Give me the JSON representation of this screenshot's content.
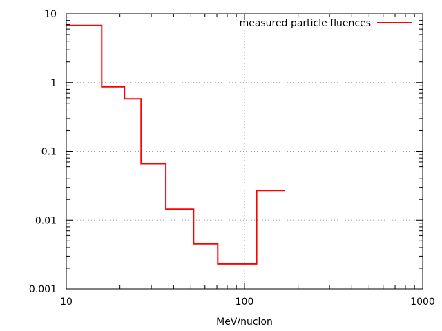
{
  "chart_data": {
    "type": "line",
    "title": "",
    "xlabel": "MeV/nuclon",
    "ylabel": "",
    "xscale": "log",
    "yscale": "log",
    "xlim": [
      10,
      1000
    ],
    "ylim": [
      0.001,
      10
    ],
    "grid": true,
    "legend_position": "top-right",
    "x_ticks": [
      "10",
      "100",
      "1000"
    ],
    "y_ticks": [
      "0.001",
      "0.01",
      "0.1",
      "1",
      "10"
    ],
    "line_style": "steps",
    "series": [
      {
        "name": "measured particle fluences",
        "color": "#ff0000",
        "steps": [
          {
            "x_start": 10,
            "x_end": 15.8,
            "y": 6.8
          },
          {
            "x_start": 15.8,
            "x_end": 21.2,
            "y": 0.87
          },
          {
            "x_start": 21.2,
            "x_end": 26.3,
            "y": 0.58
          },
          {
            "x_start": 26.3,
            "x_end": 36.2,
            "y": 0.066
          },
          {
            "x_start": 36.2,
            "x_end": 51.8,
            "y": 0.0145
          },
          {
            "x_start": 51.8,
            "x_end": 70.8,
            "y": 0.0045
          },
          {
            "x_start": 70.8,
            "x_end": 117,
            "y": 0.0023
          },
          {
            "x_start": 117,
            "x_end": 168,
            "y": 0.027
          }
        ]
      }
    ]
  }
}
